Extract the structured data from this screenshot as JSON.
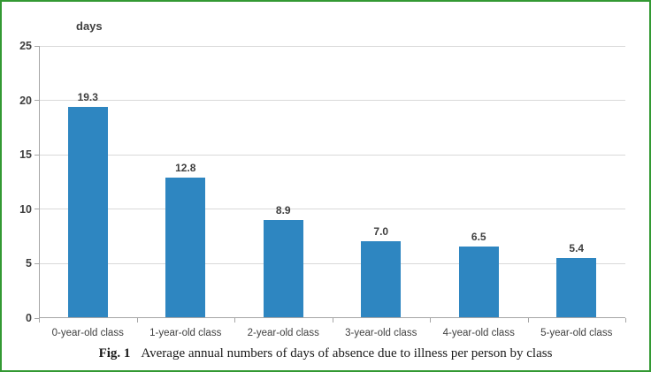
{
  "figure": {
    "caption": {
      "label": "Fig. 1",
      "text": "Average annual numbers of days of absence due to illness per person by class"
    }
  },
  "chart_data": {
    "type": "bar",
    "title": "",
    "xlabel": "",
    "ylabel": "days",
    "categories": [
      "0-year-old class",
      "1-year-old class",
      "2-year-old class",
      "3-year-old class",
      "4-year-old class",
      "5-year-old class"
    ],
    "values": [
      19.3,
      12.8,
      8.9,
      7.0,
      6.5,
      5.4
    ],
    "value_labels": [
      "19.3",
      "12.8",
      "8.9",
      "7.0",
      "6.5",
      "5.4"
    ],
    "ylim": [
      0,
      25
    ],
    "yticks": [
      0,
      5,
      10,
      15,
      20,
      25
    ],
    "grid": true,
    "legend": false,
    "colors": {
      "bar": "#2E86C1",
      "gridline": "#D9D9D9",
      "axis": "#A6A6A6",
      "text": "#3F3F3F",
      "frame_border": "#339933"
    }
  }
}
